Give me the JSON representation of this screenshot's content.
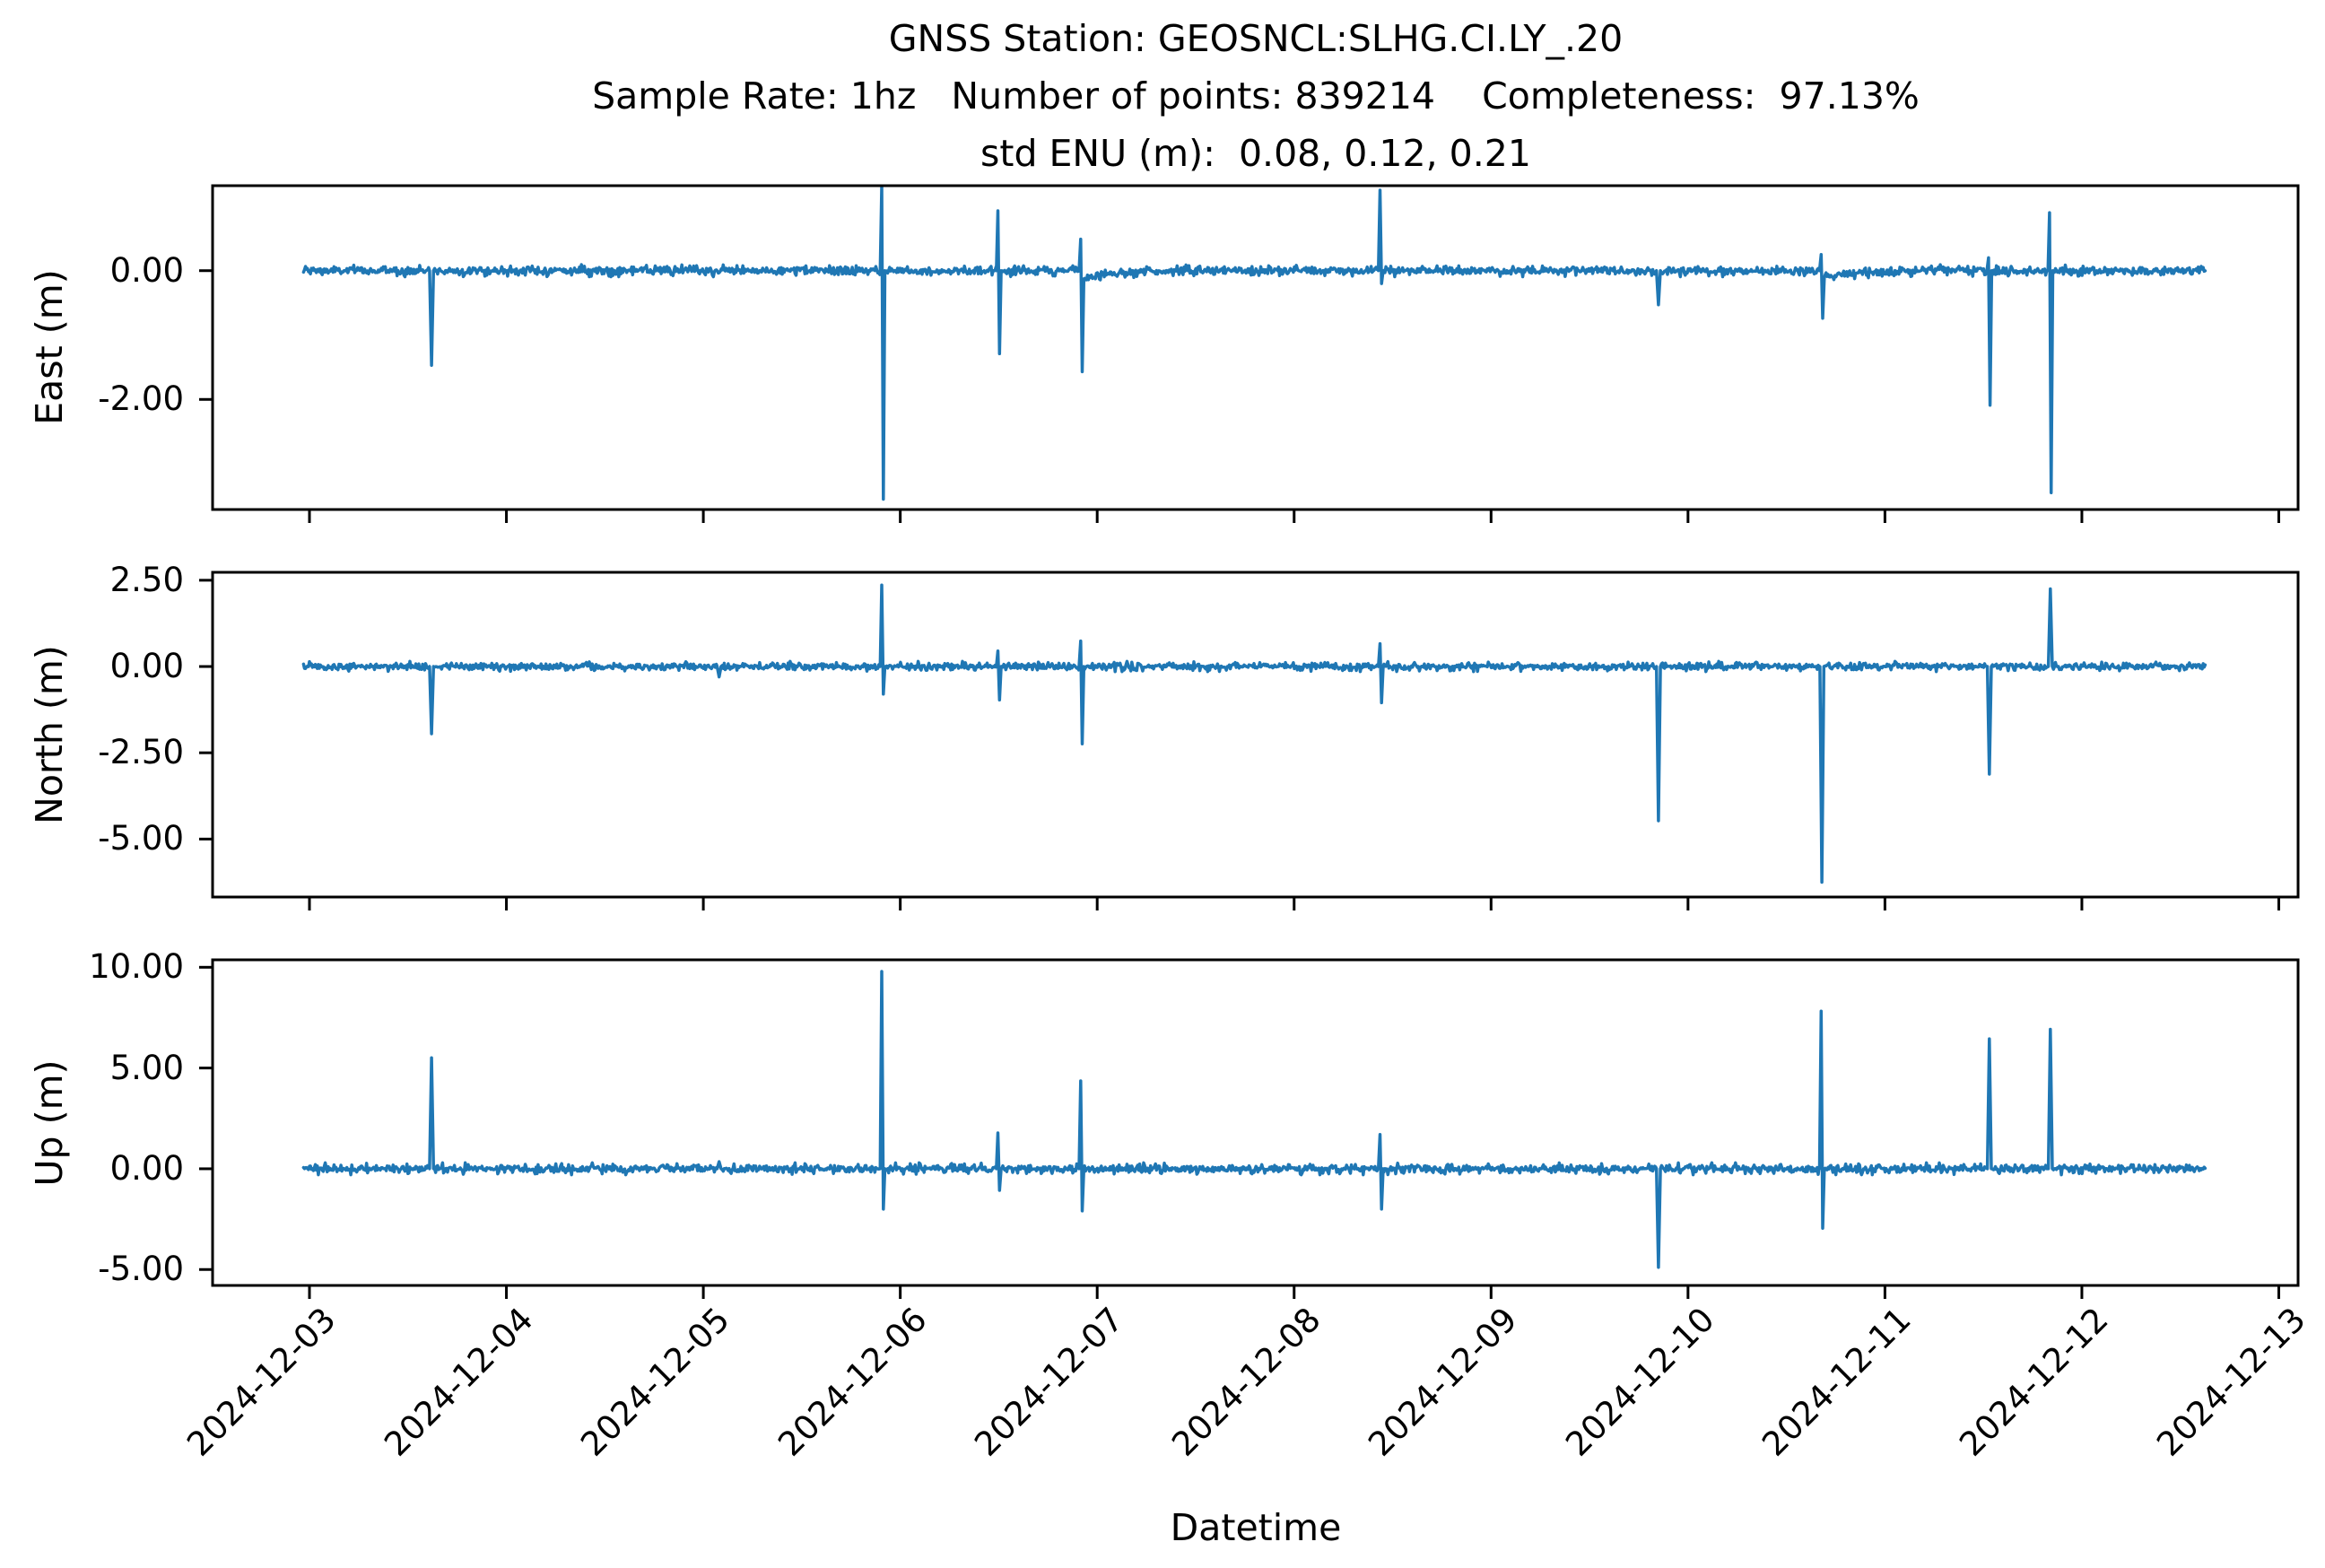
{
  "figure": {
    "background": "#ffffff",
    "text_color": "#000000",
    "title_line1": "GNSS Station: GEOSNCL:SLHG.CI.LY_.20",
    "title_line2": "Sample Rate: 1hz   Number of points: 839214    Completeness:  97.13%",
    "title_line3": "std ENU (m):  0.08, 0.12, 0.21",
    "station": "GEOSNCL:SLHG.CI.LY_.20",
    "sample_rate": "1hz",
    "number_of_points": "839214",
    "completeness": "97.13%",
    "std_enu_m": "0.08, 0.12, 0.21",
    "xlabel": "Datetime"
  },
  "chart_data": {
    "type": "line",
    "line_color": "#1f77b4",
    "grid": false,
    "legend": null,
    "xlabel": "Datetime",
    "x_axis": {
      "tick_labels": [
        "2024-12-03",
        "2024-12-04",
        "2024-12-05",
        "2024-12-06",
        "2024-12-07",
        "2024-12-08",
        "2024-12-09",
        "2024-12-10",
        "2024-12-11",
        "2024-12-12",
        "2024-12-13"
      ],
      "xlim_days": [
        -0.49,
        10.1
      ],
      "data_span_days": [
        -0.03,
        9.63
      ]
    },
    "subplots": [
      {
        "name": "east",
        "ylabel": "East (m)",
        "ylim": [
          -3.71,
          1.32
        ],
        "yticks": [
          {
            "value": 0.0,
            "label": "0.00"
          },
          {
            "value": -2.0,
            "label": "-2.00"
          }
        ],
        "baseline": 0.0,
        "noise_std": 0.035,
        "spikes": [
          {
            "day": 0.62,
            "min": -1.47
          },
          {
            "day": 2.91,
            "max": 1.31,
            "min": -3.55
          },
          {
            "day": 3.5,
            "max": 0.93,
            "min": -1.29
          },
          {
            "day": 3.92,
            "max": 0.49,
            "min": -1.57,
            "tail": -0.14
          },
          {
            "day": 5.44,
            "max": 1.25,
            "min": -0.2
          },
          {
            "day": 6.85,
            "min": -0.53
          },
          {
            "day": 7.68,
            "max": 0.25,
            "min": -0.74,
            "tail": -0.12
          },
          {
            "day": 8.53,
            "max": 0.2,
            "min": -2.09
          },
          {
            "day": 8.84,
            "max": 0.9,
            "min": -3.45
          }
        ]
      },
      {
        "name": "north",
        "ylabel": "North (m)",
        "ylim": [
          -6.68,
          2.73
        ],
        "yticks": [
          {
            "value": 2.5,
            "label": "2.50"
          },
          {
            "value": 0.0,
            "label": "0.00"
          },
          {
            "value": -2.5,
            "label": "-2.50"
          },
          {
            "value": -5.0,
            "label": "-5.00"
          }
        ],
        "baseline": 0.0,
        "noise_std": 0.055,
        "spikes": [
          {
            "day": 0.62,
            "min": -1.95
          },
          {
            "day": 2.08,
            "min": -0.3
          },
          {
            "day": 2.91,
            "max": 2.36,
            "min": -0.8
          },
          {
            "day": 3.5,
            "max": 0.45,
            "min": -0.97
          },
          {
            "day": 3.92,
            "max": 0.74,
            "min": -2.24
          },
          {
            "day": 5.44,
            "max": 0.66,
            "min": -1.05
          },
          {
            "day": 6.85,
            "min": -4.47
          },
          {
            "day": 7.68,
            "min": -6.25
          },
          {
            "day": 8.53,
            "min": -3.12
          },
          {
            "day": 8.84,
            "max": 2.25
          }
        ]
      },
      {
        "name": "up",
        "ylabel": "Up (m)",
        "ylim": [
          -5.79,
          10.37
        ],
        "yticks": [
          {
            "value": 10.0,
            "label": "10.00"
          },
          {
            "value": 5.0,
            "label": "5.00"
          },
          {
            "value": 0.0,
            "label": "0.00"
          },
          {
            "value": -5.0,
            "label": "-5.00"
          }
        ],
        "baseline": 0.0,
        "noise_std": 0.11,
        "spikes": [
          {
            "day": 0.62,
            "max": 5.51
          },
          {
            "day": 2.08,
            "max": 0.35
          },
          {
            "day": 2.91,
            "max": 9.79,
            "min": -2.0
          },
          {
            "day": 3.5,
            "max": 1.78,
            "min": -1.07
          },
          {
            "day": 3.92,
            "max": 4.36,
            "min": -2.09
          },
          {
            "day": 5.44,
            "max": 1.7,
            "min": -2.0
          },
          {
            "day": 6.85,
            "min": -4.89
          },
          {
            "day": 7.68,
            "max": 7.82,
            "min": -2.95
          },
          {
            "day": 8.53,
            "max": 6.45
          },
          {
            "day": 8.84,
            "max": 6.92
          }
        ]
      }
    ]
  }
}
